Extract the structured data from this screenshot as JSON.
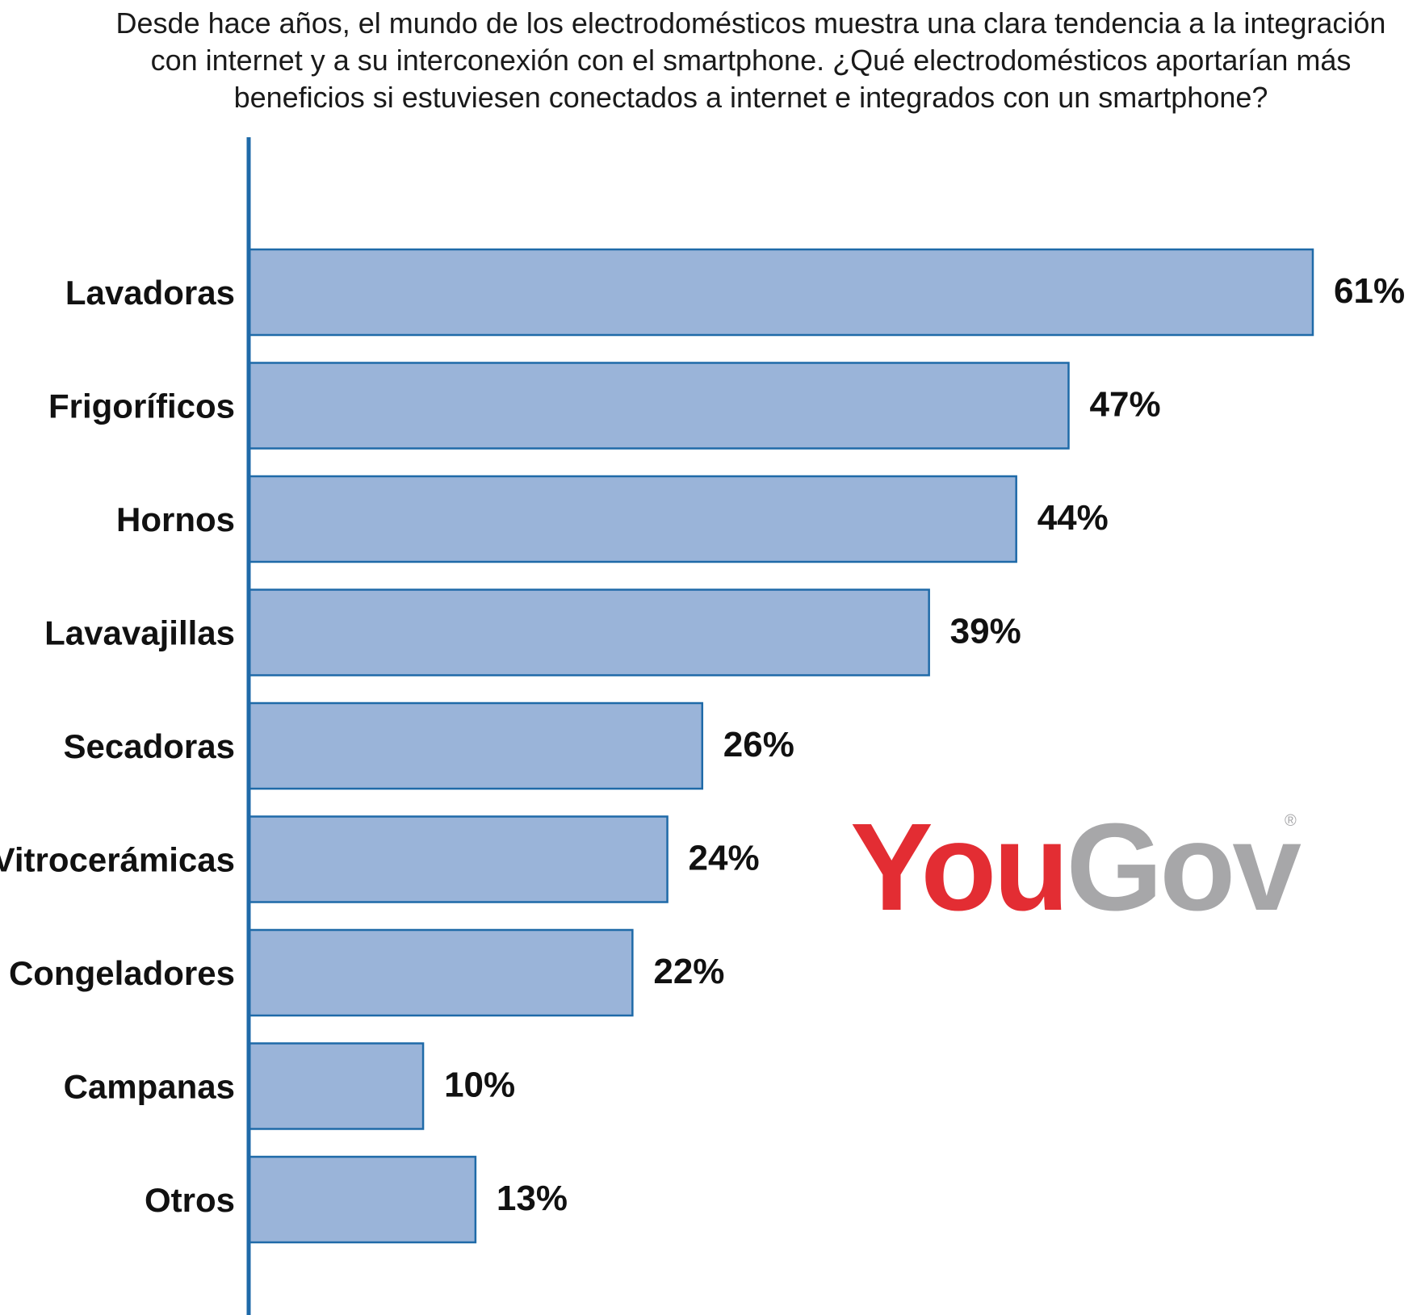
{
  "chart_data": {
    "type": "bar",
    "orientation": "horizontal",
    "title_lines": [
      "Desde hace años, el mundo de los electrodomésticos muestra una clara tendencia a la integración",
      "con internet y a su interconexión con el smartphone. ¿Qué electrodomésticos aportarían más",
      "beneficios si estuviesen conectados a internet e integrados con un smartphone?"
    ],
    "categories": [
      "Lavadoras",
      "Frigoríficos",
      "Hornos",
      "Lavavajillas",
      "Secadoras",
      "Vitrocerámicas",
      "Congeladores",
      "Campanas",
      "Otros"
    ],
    "values": [
      61,
      47,
      44,
      39,
      26,
      24,
      22,
      10,
      13
    ],
    "value_labels": [
      "61%",
      "47%",
      "44%",
      "39%",
      "26%",
      "24%",
      "22%",
      "10%",
      "13%"
    ],
    "unit": "%",
    "xlim": [
      0,
      61
    ],
    "grid": false,
    "bar_color": "#9ab4d9",
    "bar_border_color": "#1f6aa8"
  },
  "logo": {
    "part1": "You",
    "part2": "Gov",
    "mark": "®",
    "color_part1": "#e32d33",
    "color_part2": "#a7a7a9"
  }
}
